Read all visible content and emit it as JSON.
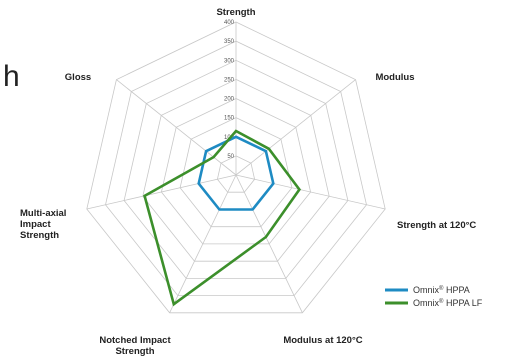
{
  "edge_fragment": "h",
  "chart_data": {
    "type": "radar",
    "title": "",
    "axes": [
      {
        "lines": [
          "Strength"
        ]
      },
      {
        "lines": [
          "Modulus"
        ]
      },
      {
        "lines": [
          "Strength at 120°C"
        ]
      },
      {
        "lines": [
          "Modulus at 120°C"
        ]
      },
      {
        "lines": [
          "Notched Impact",
          "Strength"
        ]
      },
      {
        "lines": [
          "Multi-axial",
          "Impact",
          "Strength"
        ]
      },
      {
        "lines": [
          "Gloss"
        ]
      }
    ],
    "ticks": [
      50,
      100,
      150,
      200,
      250,
      300,
      350,
      400
    ],
    "range": [
      0,
      400
    ],
    "grid": true,
    "legend_position": "bottom-right",
    "series": [
      {
        "name": "Omnix",
        "name_suffix": " HPPA",
        "sup": "®",
        "color": "#1e8bc3",
        "values": [
          100,
          100,
          100,
          100,
          100,
          100,
          100
        ]
      },
      {
        "name": "Omnix",
        "name_suffix": " HPPA LF",
        "sup": "®",
        "color": "#3c8f2b",
        "values": [
          115,
          110,
          170,
          180,
          375,
          245,
          75
        ]
      }
    ]
  }
}
